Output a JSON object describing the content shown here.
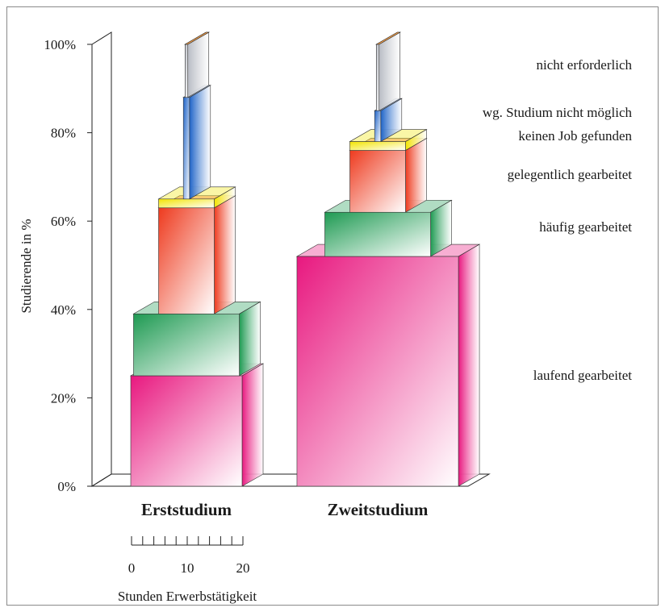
{
  "chart_data": {
    "type": "bar",
    "ylabel": "Studierende in %",
    "yticks": [
      "0%",
      "20%",
      "40%",
      "60%",
      "80%",
      "100%"
    ],
    "ylim": [
      0,
      100
    ],
    "categories": [
      "Erststudium",
      "Zweitstudium"
    ],
    "bar_width_hours": [
      [
        20,
        19,
        10,
        10,
        1.1,
        0.5,
        0.5
      ],
      [
        29,
        19,
        10,
        10,
        1.1,
        0.5,
        0.5
      ]
    ],
    "series": [
      {
        "name": "laufend gearbeitet",
        "values": [
          25,
          52
        ]
      },
      {
        "name": "häufig gearbeitet",
        "values": [
          14,
          10
        ]
      },
      {
        "name": "gelegentlich  gearbeitet",
        "values": [
          24,
          14
        ]
      },
      {
        "name": "keinen Job gefunden",
        "values": [
          2,
          2
        ]
      },
      {
        "name": "wg. Studium nicht möglich",
        "values": [
          23,
          7
        ]
      },
      {
        "name": "nicht erforderlich",
        "values": [
          12,
          15
        ]
      }
    ],
    "colors": {
      "laufend gearbeitet": "#e8187f",
      "häufig gearbeitet": "#1e9a52",
      "gelegentlich  gearbeitet": "#ee3a1e",
      "keinen Job gefunden": "#f2e400",
      "wg. Studium nicht möglich": "#1f64c8",
      "nicht erforderlich": "#b8bcc4"
    },
    "width_scale": {
      "ticks": [
        "0",
        "10",
        "20"
      ],
      "label": "Stunden Erwerbstätigkeit"
    }
  }
}
